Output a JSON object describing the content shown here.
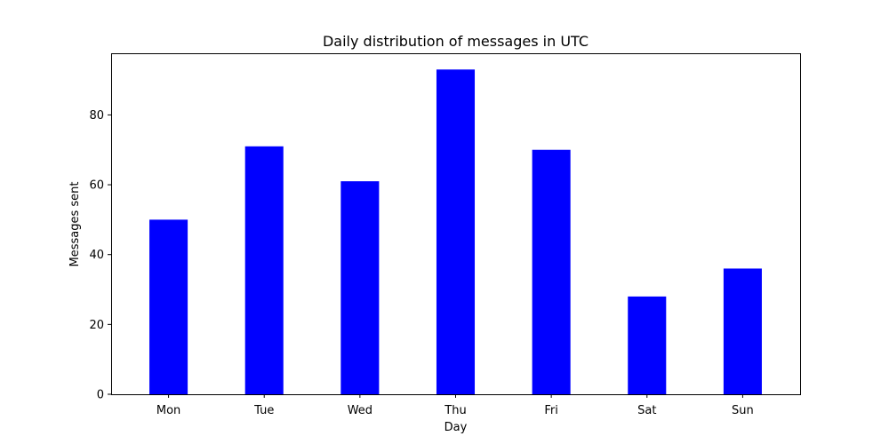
{
  "chart_data": {
    "type": "bar",
    "title": "Daily distribution of messages in UTC",
    "xlabel": "Day",
    "ylabel": "Messages sent",
    "categories": [
      "Mon",
      "Tue",
      "Wed",
      "Thu",
      "Fri",
      "Sat",
      "Sun"
    ],
    "values": [
      50,
      71,
      61,
      93,
      70,
      28,
      36
    ],
    "ylim": [
      0,
      97.65
    ],
    "yticks": [
      0,
      20,
      40,
      60,
      80
    ],
    "grid": false,
    "bar_color": "#0000ff"
  }
}
